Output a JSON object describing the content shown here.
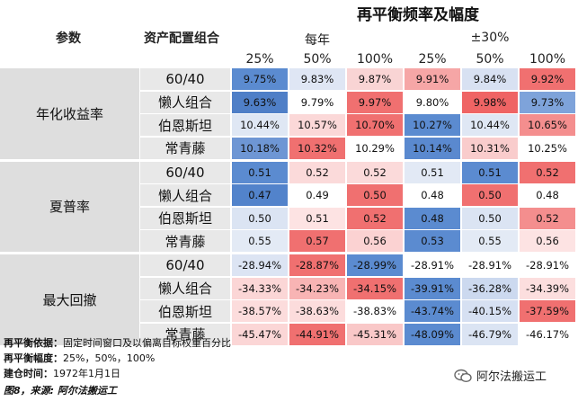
{
  "title": "再平衡频率及幅度",
  "header": {
    "param_label": "参数",
    "portfolio_label": "资产配置组合",
    "sub_left": "每年",
    "sub_right": "±30%",
    "percents": [
      "25%",
      "50%",
      "100%",
      "25%",
      "50%",
      "100%"
    ]
  },
  "groups": [
    {
      "label": "年化收益率",
      "rows": [
        {
          "name": "60/40",
          "values": [
            "9.75%",
            "9.83%",
            "9.87%",
            "9.91%",
            "9.84%",
            "9.92%"
          ],
          "colors": [
            "#5b8bd0",
            "#dfe6f4",
            "#f9d4d4",
            "#f6a6a6",
            "#d8e1f2",
            "#f07070"
          ]
        },
        {
          "name": "懒人组合",
          "values": [
            "9.63%",
            "9.79%",
            "9.97%",
            "9.80%",
            "9.98%",
            "9.73%"
          ],
          "colors": [
            "#4f7fc7",
            "#ffffff",
            "#f07070",
            "#ffffff",
            "#ef6464",
            "#7ea3da"
          ]
        },
        {
          "name": "伯恩斯坦",
          "values": [
            "10.44%",
            "10.57%",
            "10.70%",
            "10.27%",
            "10.44%",
            "10.65%"
          ],
          "colors": [
            "#dfe7f4",
            "#fbd8d8",
            "#f07070",
            "#5b8bd0",
            "#dfe7f4",
            "#f48e8e"
          ]
        },
        {
          "name": "常青藤",
          "values": [
            "10.18%",
            "10.32%",
            "10.29%",
            "10.14%",
            "10.31%",
            "10.25%"
          ],
          "colors": [
            "#6e96d4",
            "#f07070",
            "#ffffff",
            "#5a89cf",
            "#f9cccc",
            "#ffffff"
          ]
        }
      ]
    },
    {
      "label": "夏普率",
      "rows": [
        {
          "name": "60/40",
          "values": [
            "0.51",
            "0.52",
            "0.52",
            "0.51",
            "0.51",
            "0.52"
          ],
          "colors": [
            "#5b8bd0",
            "#fbdada",
            "#fbdada",
            "#e2e9f5",
            "#5b8bd0",
            "#f07070"
          ]
        },
        {
          "name": "懒人组合",
          "values": [
            "0.47",
            "0.49",
            "0.50",
            "0.48",
            "0.50",
            "0.48"
          ],
          "colors": [
            "#5283cb",
            "#ffffff",
            "#f07070",
            "#ffffff",
            "#f07070",
            "#ffffff"
          ]
        },
        {
          "name": "伯恩斯坦",
          "values": [
            "0.50",
            "0.51",
            "0.52",
            "0.48",
            "0.50",
            "0.52"
          ],
          "colors": [
            "#dbe4f3",
            "#fde3e3",
            "#f07070",
            "#5b8bd0",
            "#dbe4f3",
            "#f48e8e"
          ]
        },
        {
          "name": "常青藤",
          "values": [
            "0.55",
            "0.57",
            "0.56",
            "0.53",
            "0.55",
            "0.56"
          ],
          "colors": [
            "#e3eaf5",
            "#f07070",
            "#fbd2d2",
            "#5b8bd0",
            "#e3eaf5",
            "#fde3e3"
          ]
        }
      ]
    },
    {
      "label": "最大回撤",
      "rows": [
        {
          "name": "60/40",
          "values": [
            "-28.94%",
            "-28.87%",
            "-28.99%",
            "-28.91%",
            "-28.91%",
            "-28.91%"
          ],
          "colors": [
            "#dce4f3",
            "#f07070",
            "#5b8bd0",
            "#ffffff",
            "#ffffff",
            "#ffffff"
          ]
        },
        {
          "name": "懒人组合",
          "values": [
            "-34.33%",
            "-34.23%",
            "-34.15%",
            "-39.91%",
            "-36.28%",
            "-34.39%"
          ],
          "colors": [
            "#fbd6d6",
            "#f8b4b4",
            "#f07070",
            "#5b8bd0",
            "#ccd9ef",
            "#fcdede"
          ]
        },
        {
          "name": "伯恩斯坦",
          "values": [
            "-38.57%",
            "-38.63%",
            "-38.83%",
            "-43.74%",
            "-40.15%",
            "-37.59%"
          ],
          "colors": [
            "#fcdcdc",
            "#fcdcdc",
            "#ffffff",
            "#5b8bd0",
            "#d6e0f2",
            "#f07070"
          ]
        },
        {
          "name": "常青藤",
          "values": [
            "-45.47%",
            "-44.91%",
            "-45.31%",
            "-48.09%",
            "-46.79%",
            "-46.17%"
          ],
          "colors": [
            "#fbd6d6",
            "#f07070",
            "#f9c8c8",
            "#5b8bd0",
            "#dbe4f3",
            "#ffffff"
          ]
        }
      ]
    }
  ],
  "footer": {
    "line1_label": "再平衡依据：",
    "line1_text": "固定时间窗口及以偏离目标权重百分比",
    "line2_label": "再平衡幅度：",
    "line2_text": "25%，50%，100%",
    "line3_label": "建仓时间：",
    "line3_text": "1972年1月1日",
    "source": "图8，来源: 阿尔法搬运工",
    "watermark": "阿尔法搬运工"
  }
}
